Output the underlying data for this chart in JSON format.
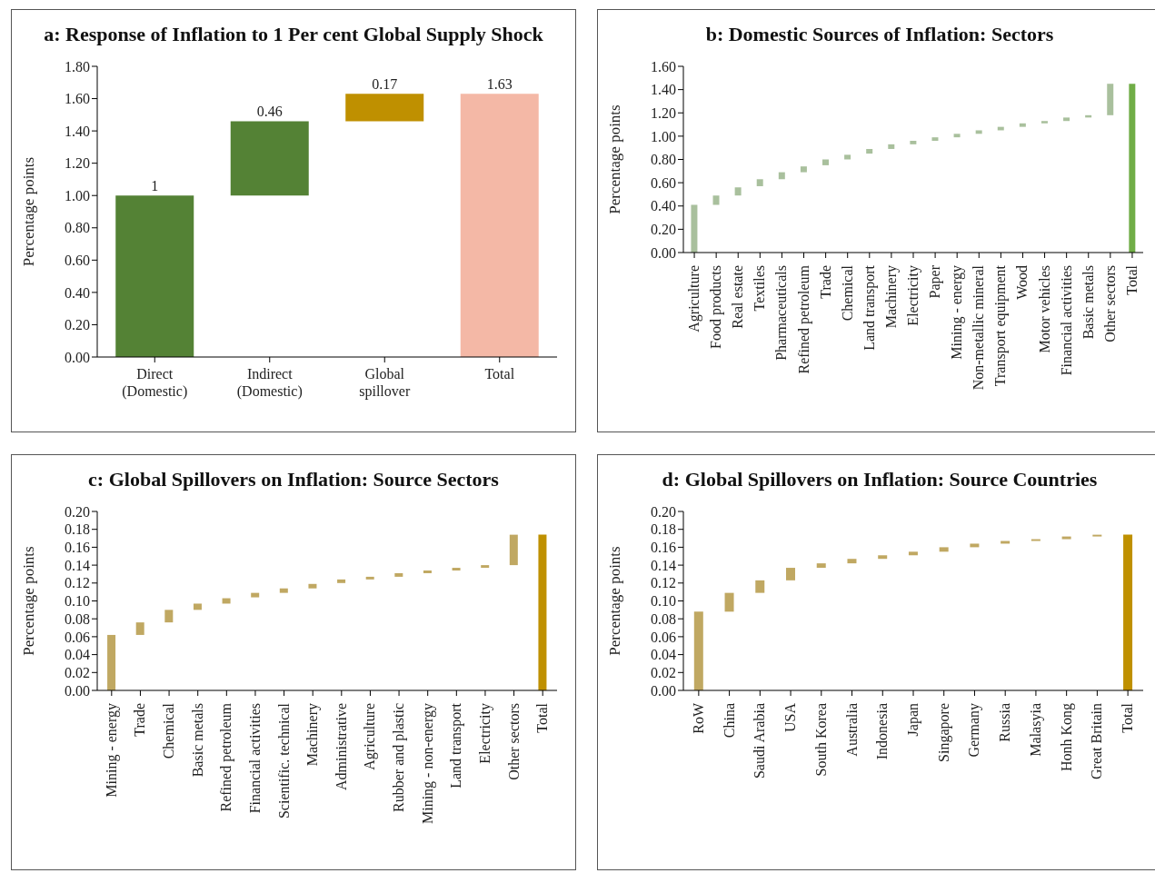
{
  "chart_data": [
    {
      "type": "bar",
      "title": "a: Response of Inflation to 1 Per cent Global Supply Shock",
      "ylabel": "Percentage points",
      "categories": [
        "Direct (Domestic)",
        "Indirect (Domestic)",
        "Global spillover",
        "Total"
      ],
      "values": [
        1,
        0.46,
        0.17,
        1.63
      ],
      "base": [
        0,
        1,
        1.46,
        0
      ],
      "colors": [
        "#548235",
        "#548235",
        "#bf9000",
        "#f4b8a6"
      ],
      "data_labels": true,
      "ylim": [
        0,
        1.8
      ],
      "yticks": [
        {
          "value": 0,
          "label": "0.00"
        },
        {
          "value": 0.2,
          "label": "0.20"
        },
        {
          "value": 0.4,
          "label": "0.40"
        },
        {
          "value": 0.6,
          "label": "0.60"
        },
        {
          "value": 0.8,
          "label": "0.80"
        },
        {
          "value": 1,
          "label": "1.00"
        },
        {
          "value": 1.2,
          "label": "1.20"
        },
        {
          "value": 1.4,
          "label": "1.40"
        },
        {
          "value": 1.6,
          "label": "1.60"
        },
        {
          "value": 1.8,
          "label": "1.80"
        }
      ]
    },
    {
      "type": "bar",
      "title": "b: Domestic  Sources of Inflation: Sectors",
      "ylabel": "Percentage points",
      "categories": [
        "Agriculture",
        "Food products",
        "Real estate",
        "Textiles",
        "Pharmaceuticals",
        "Refined petroleum",
        "Trade",
        "Chemical",
        "Land transport",
        "Machinery",
        "Electricity",
        "Paper",
        "Mining - energy",
        "Non-metallic mineral",
        "Transport equipment",
        "Wood",
        "Motor vehicles",
        "Financial activities",
        "Basic metals",
        "Other sectors",
        "Total"
      ],
      "values": [
        0.41,
        0.08,
        0.07,
        0.06,
        0.06,
        0.05,
        0.05,
        0.04,
        0.04,
        0.04,
        0.03,
        0.03,
        0.03,
        0.03,
        0.03,
        0.03,
        0.02,
        0.03,
        0.02,
        0.27,
        1.45
      ],
      "base": [
        0,
        0.41,
        0.49,
        0.57,
        0.63,
        0.69,
        0.75,
        0.8,
        0.85,
        0.89,
        0.93,
        0.96,
        0.99,
        1.02,
        1.05,
        1.08,
        1.11,
        1.13,
        1.16,
        1.18,
        0
      ],
      "colors": [
        "#a9c09d",
        "#a9c09d",
        "#a9c09d",
        "#a9c09d",
        "#a9c09d",
        "#a9c09d",
        "#a9c09d",
        "#a9c09d",
        "#a9c09d",
        "#a9c09d",
        "#a9c09d",
        "#a9c09d",
        "#a9c09d",
        "#a9c09d",
        "#a9c09d",
        "#a9c09d",
        "#a9c09d",
        "#a9c09d",
        "#a9c09d",
        "#a9c09d",
        "#70ad47"
      ],
      "ylim": [
        0,
        1.6
      ],
      "yticks": [
        {
          "value": 0,
          "label": "0.00"
        },
        {
          "value": 0.2,
          "label": "0.20"
        },
        {
          "value": 0.4,
          "label": "0.40"
        },
        {
          "value": 0.6,
          "label": "0.60"
        },
        {
          "value": 0.8,
          "label": "0.80"
        },
        {
          "value": 1,
          "label": "1.00"
        },
        {
          "value": 1.2,
          "label": "1.20"
        },
        {
          "value": 1.4,
          "label": "1.40"
        },
        {
          "value": 1.6,
          "label": "1.60"
        }
      ]
    },
    {
      "type": "bar",
      "title": "c: Global Spillovers on Inflation: Source Sectors",
      "ylabel": "Percentage points",
      "categories": [
        "Mining - energy",
        "Trade",
        "Chemical",
        "Basic metals",
        "Refined petroleum",
        "Financial activities",
        "Scientific. technical",
        "Machinery",
        "Administrative",
        "Agriculture",
        "Rubber and plastic",
        "Mining - non-energy",
        "Land transport",
        "Electricity",
        "Other sectors",
        "Total"
      ],
      "values": [
        0.062,
        0.014,
        0.014,
        0.007,
        0.006,
        0.005,
        0.005,
        0.005,
        0.004,
        0.003,
        0.004,
        0.003,
        0.003,
        0.003,
        0.034,
        0.174
      ],
      "base": [
        0,
        0.062,
        0.076,
        0.09,
        0.097,
        0.104,
        0.109,
        0.114,
        0.12,
        0.124,
        0.127,
        0.131,
        0.134,
        0.137,
        0.14,
        0
      ],
      "colors": [
        "#c0a862",
        "#c0a862",
        "#c0a862",
        "#c0a862",
        "#c0a862",
        "#c0a862",
        "#c0a862",
        "#c0a862",
        "#c0a862",
        "#c0a862",
        "#c0a862",
        "#c0a862",
        "#c0a862",
        "#c0a862",
        "#c0a862",
        "#bf9000"
      ],
      "ylim": [
        0,
        0.2
      ],
      "yticks": [
        {
          "value": 0,
          "label": "0.00"
        },
        {
          "value": 0.02,
          "label": "0.02"
        },
        {
          "value": 0.04,
          "label": "0.04"
        },
        {
          "value": 0.06,
          "label": "0.06"
        },
        {
          "value": 0.08,
          "label": "0.08"
        },
        {
          "value": 0.1,
          "label": "0.10"
        },
        {
          "value": 0.12,
          "label": "0.12"
        },
        {
          "value": 0.14,
          "label": "0.14"
        },
        {
          "value": 0.16,
          "label": "0.16"
        },
        {
          "value": 0.18,
          "label": "0.18"
        },
        {
          "value": 0.2,
          "label": "0.20"
        }
      ]
    },
    {
      "type": "bar",
      "title": "d: Global Spillovers on Inflation: Source Countries",
      "ylabel": "Percentage points",
      "categories": [
        "RoW",
        "China",
        "Saudi Arabia",
        "USA",
        "South Korea",
        "Australia",
        "Indonesia",
        "Japan",
        "Singapore",
        "Germany",
        "Russia",
        "Malasyia",
        "Honh Kong",
        "Great Britain",
        "Total"
      ],
      "values": [
        0.088,
        0.021,
        0.014,
        0.014,
        0.005,
        0.005,
        0.004,
        0.004,
        0.005,
        0.004,
        0.003,
        0.002,
        0.003,
        0.002,
        0.174
      ],
      "base": [
        0,
        0.088,
        0.109,
        0.123,
        0.137,
        0.142,
        0.147,
        0.151,
        0.155,
        0.16,
        0.164,
        0.167,
        0.169,
        0.172,
        0
      ],
      "colors": [
        "#c0a862",
        "#c0a862",
        "#c0a862",
        "#c0a862",
        "#c0a862",
        "#c0a862",
        "#c0a862",
        "#c0a862",
        "#c0a862",
        "#c0a862",
        "#c0a862",
        "#c0a862",
        "#c0a862",
        "#c0a862",
        "#bf9000"
      ],
      "ylim": [
        0,
        0.2
      ],
      "yticks": [
        {
          "value": 0,
          "label": "0.00"
        },
        {
          "value": 0.02,
          "label": "0.02"
        },
        {
          "value": 0.04,
          "label": "0.04"
        },
        {
          "value": 0.06,
          "label": "0.06"
        },
        {
          "value": 0.08,
          "label": "0.08"
        },
        {
          "value": 0.1,
          "label": "0.10"
        },
        {
          "value": 0.12,
          "label": "0.12"
        },
        {
          "value": 0.14,
          "label": "0.14"
        },
        {
          "value": 0.16,
          "label": "0.16"
        },
        {
          "value": 0.18,
          "label": "0.18"
        },
        {
          "value": 0.2,
          "label": "0.20"
        }
      ]
    }
  ]
}
